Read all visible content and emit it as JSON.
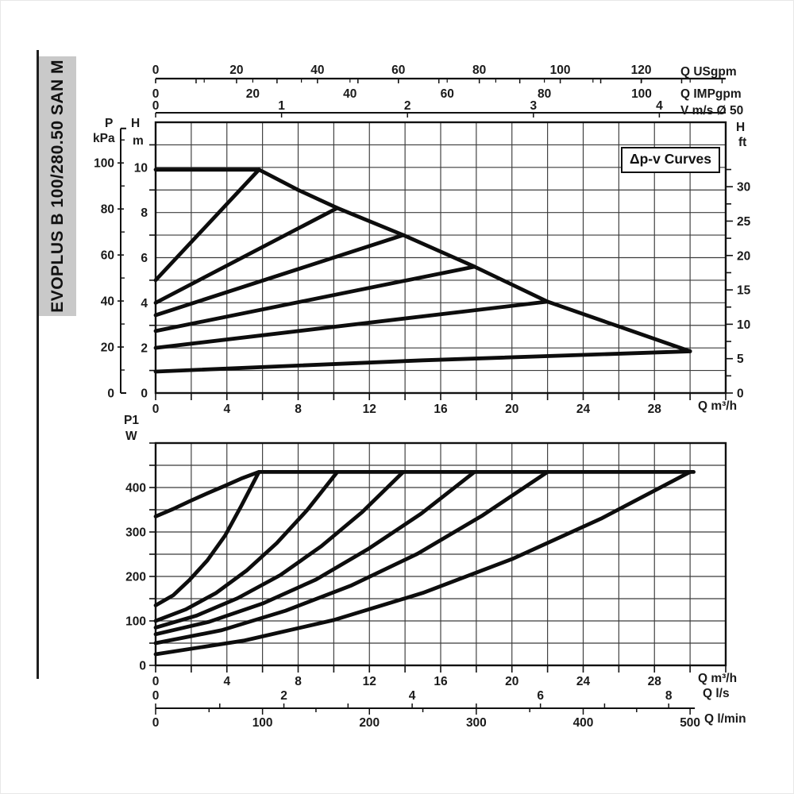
{
  "sidebar": {
    "label": "EVOPLUS B 100/280.50 SAN M",
    "bg": "#c9c9c9"
  },
  "labels": {
    "p": "P",
    "kpa": "kPa",
    "h": "H",
    "m": "m",
    "ft": "ft",
    "p1": "P1",
    "w": "W",
    "q_usgpm": "Q USgpm",
    "q_impgpm": "Q IMPgpm",
    "v_ms": "V m/s Ø 50",
    "q_m3h": "Q m³/h",
    "q_ls": "Q l/s",
    "q_lmin": "Q l/min",
    "dpv": "Δp-v Curves"
  },
  "colors": {
    "curve": "#0d0d0d",
    "grid": "#3b3b3b",
    "axis": "#111111",
    "text": "#1a1a1a",
    "sidebar_bg": "#c9c9c9"
  },
  "chart_data": [
    {
      "type": "line",
      "title": "Δp-v Curves",
      "x_axis": {
        "unit": "Q m³/h",
        "min": 0,
        "max": 32,
        "grid_step": 2,
        "tick_step": 2,
        "tick_labels": [
          0,
          4,
          8,
          12,
          16,
          20,
          24,
          28
        ]
      },
      "y_axis": {
        "unit": "H m",
        "min": 0,
        "max": 12,
        "grid_step": 1,
        "tick_labels": [
          0,
          2,
          4,
          6,
          8,
          10
        ],
        "minor_step": 1
      },
      "y2_axis": {
        "unit": "H ft",
        "tick_labels": [
          0,
          5,
          10,
          15,
          20,
          25,
          30
        ],
        "minor_step": 2.5,
        "max": 32.5,
        "m_per_ft": 0.3048
      },
      "y3_axis": {
        "unit": "P kPa",
        "tick_labels": [
          0,
          20,
          40,
          60,
          80,
          100
        ],
        "minor_step": 10,
        "axis_top_kpa": 115,
        "kpa_per_m": 9.80665
      },
      "x2_axis": {
        "unit": "Q USgpm",
        "tick_labels": [
          0,
          20,
          40,
          60,
          80,
          100,
          120
        ],
        "minor_step": 10,
        "max": 140,
        "m3h_per_unit": 0.22712
      },
      "x3_axis": {
        "unit": "Q IMPgpm",
        "tick_labels": [
          0,
          20,
          40,
          60,
          80,
          100
        ],
        "minor_step": 10,
        "max": 115,
        "m3h_per_unit": 0.27276
      },
      "x4_axis": {
        "unit": "V m/s Ø 50",
        "tick_labels": [
          0,
          1,
          2,
          3,
          4
        ],
        "minor_step": 1,
        "max": 4,
        "m3h_per_unit": 7.0686
      },
      "series": [
        {
          "name": "max-speed-head",
          "points": [
            [
              0,
              9.9
            ],
            [
              5.8,
              9.9
            ]
          ]
        },
        {
          "name": "max-speed-envelope",
          "points": [
            [
              5.8,
              9.9
            ],
            [
              8,
              9.0
            ],
            [
              10.2,
              8.2
            ],
            [
              13.9,
              7.0
            ],
            [
              17.9,
              5.6
            ],
            [
              22,
              4.05
            ],
            [
              26,
              2.95
            ],
            [
              30,
              1.85
            ]
          ]
        },
        {
          "name": "dpv-setting-1",
          "points": [
            [
              0,
              5.0
            ],
            [
              5.8,
              9.9
            ]
          ]
        },
        {
          "name": "dpv-setting-2",
          "points": [
            [
              0,
              4.0
            ],
            [
              10.2,
              8.2
            ]
          ]
        },
        {
          "name": "dpv-setting-3",
          "points": [
            [
              0,
              3.45
            ],
            [
              13.9,
              7.0
            ]
          ]
        },
        {
          "name": "dpv-setting-4",
          "points": [
            [
              0,
              2.75
            ],
            [
              17.9,
              5.6
            ]
          ]
        },
        {
          "name": "dpv-setting-5",
          "points": [
            [
              0,
              2.0
            ],
            [
              22,
              4.05
            ]
          ]
        },
        {
          "name": "dpv-setting-6",
          "points": [
            [
              0,
              0.95
            ],
            [
              15,
              1.45
            ],
            [
              30,
              1.85
            ]
          ]
        }
      ]
    },
    {
      "type": "line",
      "title": "Power input P1",
      "x_axis": {
        "unit": "Q m³/h",
        "min": 0,
        "max": 32,
        "grid_step": 2,
        "tick_step": 2,
        "tick_labels": [
          0,
          4,
          8,
          12,
          16,
          20,
          24,
          28
        ]
      },
      "x2_axis": {
        "unit": "Q l/s",
        "tick_labels": [
          0,
          2,
          4,
          6,
          8
        ],
        "minor_step": 1,
        "max": 8,
        "m3h_per_unit": 3.6
      },
      "x3_axis": {
        "unit": "Q l/min",
        "tick_labels": [
          0,
          100,
          200,
          300,
          400,
          500
        ],
        "minor_step": 50,
        "max": 500,
        "m3h_per_unit": 0.06
      },
      "y_axis": {
        "unit": "P1 W",
        "min": 0,
        "max": 500,
        "grid_step": 50,
        "tick_labels": [
          0,
          100,
          200,
          300,
          400
        ],
        "minor_step": 50
      },
      "series": [
        {
          "name": "power-max-speed",
          "points": [
            [
              0,
              335
            ],
            [
              1,
              352
            ],
            [
              1.9,
              369
            ],
            [
              2.9,
              387
            ],
            [
              3.9,
              404
            ],
            [
              4.8,
              420
            ],
            [
              5.8,
              435
            ],
            [
              30.2,
              435
            ]
          ]
        },
        {
          "name": "power-setting-1",
          "points": [
            [
              0,
              135
            ],
            [
              1,
              158
            ],
            [
              1.9,
              192
            ],
            [
              2.9,
              236
            ],
            [
              3.9,
              292
            ],
            [
              4.8,
              358
            ],
            [
              5.8,
              435
            ]
          ]
        },
        {
          "name": "power-setting-2",
          "points": [
            [
              0,
              100
            ],
            [
              1.7,
              126
            ],
            [
              3.4,
              163
            ],
            [
              5.1,
              213
            ],
            [
              6.8,
              275
            ],
            [
              8.5,
              349
            ],
            [
              10.2,
              435
            ]
          ]
        },
        {
          "name": "power-setting-3",
          "points": [
            [
              0,
              85
            ],
            [
              2.3,
              112
            ],
            [
              4.6,
              151
            ],
            [
              7,
              203
            ],
            [
              9.3,
              268
            ],
            [
              11.6,
              345
            ],
            [
              13.9,
              435
            ]
          ]
        },
        {
          "name": "power-setting-4",
          "points": [
            [
              0,
              70
            ],
            [
              3,
              98
            ],
            [
              6,
              139
            ],
            [
              9,
              193
            ],
            [
              11.9,
              261
            ],
            [
              14.9,
              341
            ],
            [
              17.9,
              435
            ]
          ]
        },
        {
          "name": "power-setting-5",
          "points": [
            [
              0,
              50
            ],
            [
              3.7,
              79
            ],
            [
              7.3,
              123
            ],
            [
              11,
              180
            ],
            [
              14.7,
              251
            ],
            [
              18.3,
              336
            ],
            [
              22,
              435
            ]
          ]
        },
        {
          "name": "power-setting-6",
          "points": [
            [
              0,
              25
            ],
            [
              5,
              56
            ],
            [
              10,
              102
            ],
            [
              15,
              163
            ],
            [
              20,
              239
            ],
            [
              25,
              330
            ],
            [
              30,
              435
            ]
          ]
        }
      ]
    }
  ]
}
